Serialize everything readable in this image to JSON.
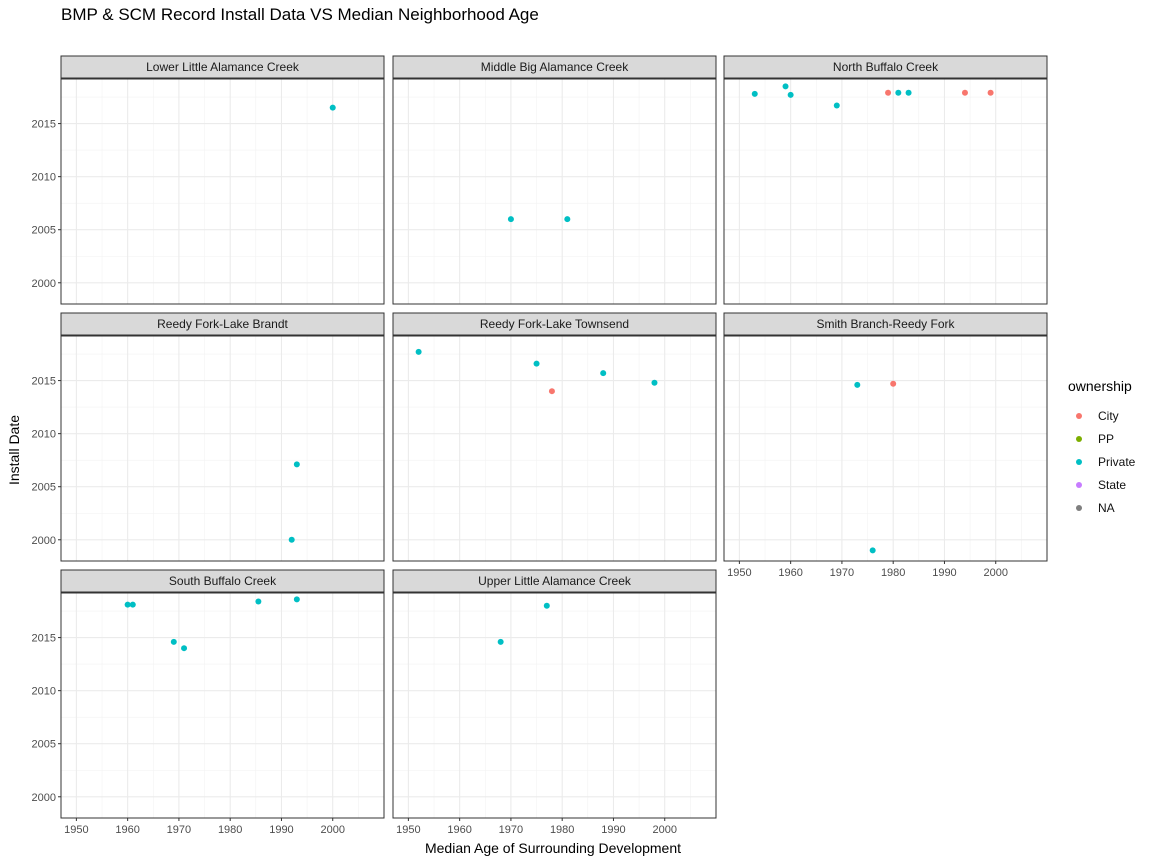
{
  "chart_data": {
    "type": "scatter",
    "title": "BMP & SCM Record Install Data VS Median Neighborhood Age",
    "xlabel": "Median Age of Surrounding Development",
    "ylabel": "Install Date",
    "xlim": [
      1947,
      2010
    ],
    "ylim": [
      1998,
      2019.2
    ],
    "x_ticks": [
      1950,
      1960,
      1970,
      1980,
      1990,
      2000
    ],
    "y_ticks": [
      2000,
      2005,
      2010,
      2015
    ],
    "grid": true,
    "legend": {
      "title": "ownership",
      "position": "right",
      "entries": [
        {
          "label": "City",
          "color": "#F8766D"
        },
        {
          "label": "PP",
          "color": "#7CAE00"
        },
        {
          "label": "Private",
          "color": "#00BFC4"
        },
        {
          "label": "State",
          "color": "#C77CFF"
        },
        {
          "label": "NA",
          "color": "#7F7F7F"
        }
      ]
    },
    "facets": [
      {
        "name": "Lower Little Alamance Creek",
        "points": [
          {
            "x": 2000,
            "y": 2016.5,
            "ownership": "Private"
          }
        ]
      },
      {
        "name": "Middle Big Alamance Creek",
        "points": [
          {
            "x": 1970,
            "y": 2006.0,
            "ownership": "Private"
          },
          {
            "x": 1981,
            "y": 2006.0,
            "ownership": "Private"
          }
        ]
      },
      {
        "name": "North Buffalo Creek",
        "points": [
          {
            "x": 1953,
            "y": 2017.8,
            "ownership": "Private"
          },
          {
            "x": 1959,
            "y": 2018.5,
            "ownership": "Private"
          },
          {
            "x": 1960,
            "y": 2017.7,
            "ownership": "Private"
          },
          {
            "x": 1969,
            "y": 2016.7,
            "ownership": "Private"
          },
          {
            "x": 1979,
            "y": 2017.9,
            "ownership": "City"
          },
          {
            "x": 1981,
            "y": 2017.9,
            "ownership": "Private"
          },
          {
            "x": 1983,
            "y": 2017.9,
            "ownership": "Private"
          },
          {
            "x": 1994,
            "y": 2017.9,
            "ownership": "City"
          },
          {
            "x": 1999,
            "y": 2017.9,
            "ownership": "City"
          }
        ]
      },
      {
        "name": "Reedy Fork-Lake Brandt",
        "points": [
          {
            "x": 1993,
            "y": 2007.1,
            "ownership": "Private"
          },
          {
            "x": 1992,
            "y": 2000.0,
            "ownership": "Private"
          }
        ]
      },
      {
        "name": "Reedy Fork-Lake Townsend",
        "points": [
          {
            "x": 1952,
            "y": 2017.7,
            "ownership": "Private"
          },
          {
            "x": 1975,
            "y": 2016.6,
            "ownership": "Private"
          },
          {
            "x": 1978,
            "y": 2014.0,
            "ownership": "City"
          },
          {
            "x": 1988,
            "y": 2015.7,
            "ownership": "Private"
          },
          {
            "x": 1998,
            "y": 2014.8,
            "ownership": "Private"
          }
        ]
      },
      {
        "name": "Smith Branch-Reedy Fork",
        "points": [
          {
            "x": 1973,
            "y": 2014.6,
            "ownership": "Private"
          },
          {
            "x": 1980,
            "y": 2014.7,
            "ownership": "City"
          },
          {
            "x": 1976,
            "y": 1999.0,
            "ownership": "Private"
          }
        ]
      },
      {
        "name": "South Buffalo Creek",
        "points": [
          {
            "x": 1960,
            "y": 2018.1,
            "ownership": "Private"
          },
          {
            "x": 1961,
            "y": 2018.1,
            "ownership": "Private"
          },
          {
            "x": 1969,
            "y": 2014.6,
            "ownership": "Private"
          },
          {
            "x": 1971,
            "y": 2014.0,
            "ownership": "Private"
          },
          {
            "x": 1985.5,
            "y": 2018.4,
            "ownership": "Private"
          },
          {
            "x": 1993,
            "y": 2018.6,
            "ownership": "Private"
          }
        ]
      },
      {
        "name": "Upper Little Alamance Creek",
        "points": [
          {
            "x": 1968,
            "y": 2014.6,
            "ownership": "Private"
          },
          {
            "x": 1977,
            "y": 2018.0,
            "ownership": "Private"
          }
        ]
      }
    ]
  }
}
